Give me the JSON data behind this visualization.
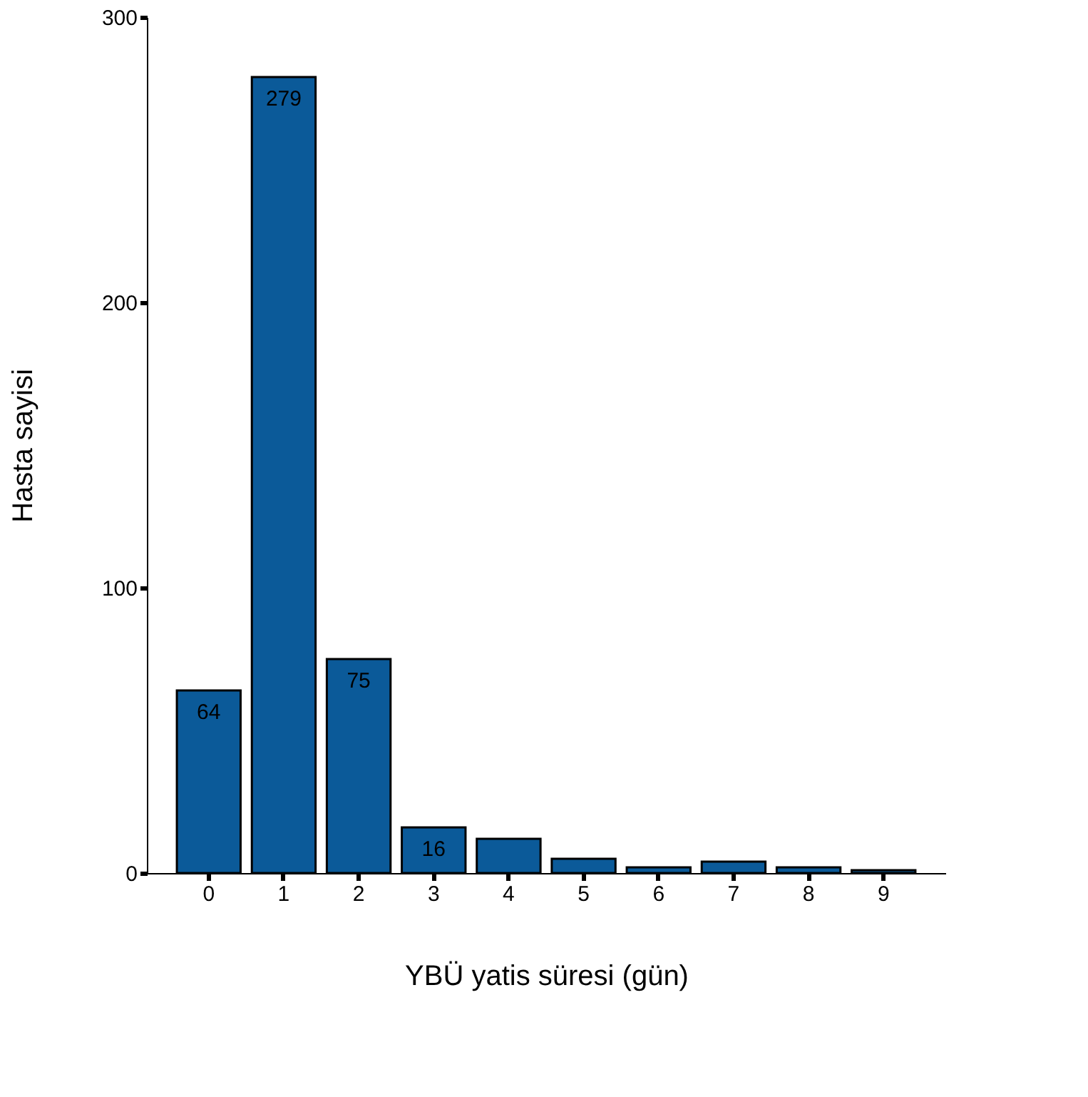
{
  "chart_data": {
    "type": "bar",
    "xlabel": "YBÜ yatis süresi (gün)",
    "ylabel": "Hasta sayisi",
    "categories": [
      "0",
      "1",
      "2",
      "3",
      "4",
      "5",
      "6",
      "7",
      "8",
      "9"
    ],
    "values": [
      64,
      279,
      75,
      16,
      12,
      5,
      2,
      4,
      2,
      1
    ],
    "value_labels": [
      "64",
      "279",
      "75",
      "16",
      null,
      null,
      null,
      null,
      null,
      null
    ],
    "color": "#0b5a99",
    "ylim": [
      0,
      300
    ],
    "yticks": [
      0,
      100,
      200,
      300
    ],
    "grid": false
  }
}
